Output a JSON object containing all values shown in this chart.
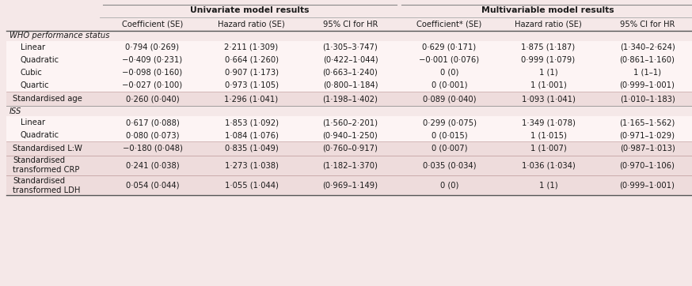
{
  "bg_color": "#f5e8e8",
  "header1": "Univariate model results",
  "header2": "Multivariable model results",
  "col_headers": [
    "Coefficient (SE)",
    "Hazard ratio (SE)",
    "95% CI for HR",
    "Coefficient* (SE)",
    "Hazard ratio (SE)",
    "95% CI for HR"
  ],
  "rows": [
    {
      "label": "WHO performance status",
      "type": "section",
      "data": [
        "",
        "",
        "",
        "",
        "",
        ""
      ]
    },
    {
      "label": "Linear",
      "type": "data",
      "indent": true,
      "data": [
        "0·794 (0·269)",
        "2·211 (1·309)",
        "(1·305–3·747)",
        "0·629 (0·171)",
        "1·875 (1·187)",
        "(1·340–2·624)"
      ]
    },
    {
      "label": "Quadratic",
      "type": "data",
      "indent": true,
      "data": [
        "−0·409 (0·231)",
        "0·664 (1·260)",
        "(0·422–1·044)",
        "−0·001 (0·076)",
        "0·999 (1·079)",
        "(0·861–1·160)"
      ]
    },
    {
      "label": "Cubic",
      "type": "data",
      "indent": true,
      "data": [
        "−0·098 (0·160)",
        "0·907 (1·173)",
        "(0·663–1·240)",
        "0 (0)",
        "1 (1)",
        "1 (1–1)"
      ]
    },
    {
      "label": "Quartic",
      "type": "data",
      "indent": true,
      "data": [
        "−0·027 (0·100)",
        "0·973 (1·105)",
        "(0·800–1·184)",
        "0 (0·001)",
        "1 (1·001)",
        "(0·999–1·001)"
      ]
    },
    {
      "label": "Standardised age",
      "type": "shaded",
      "indent": false,
      "data": [
        "0·260 (0·040)",
        "1·296 (1·041)",
        "(1·198–1·402)",
        "0·089 (0·040)",
        "1·093 (1·041)",
        "(1·010–1·183)"
      ]
    },
    {
      "label": "ISS",
      "type": "section",
      "data": [
        "",
        "",
        "",
        "",
        "",
        ""
      ]
    },
    {
      "label": "Linear",
      "type": "data",
      "indent": true,
      "data": [
        "0·617 (0·088)",
        "1·853 (1·092)",
        "(1·560–2·201)",
        "0·299 (0·075)",
        "1·349 (1·078)",
        "(1·165–1·562)"
      ]
    },
    {
      "label": "Quadratic",
      "type": "data",
      "indent": true,
      "data": [
        "0·080 (0·073)",
        "1·084 (1·076)",
        "(0·940–1·250)",
        "0 (0·015)",
        "1 (1·015)",
        "(0·971–1·029)"
      ]
    },
    {
      "label": "Standardised L:W",
      "type": "shaded",
      "indent": false,
      "data": [
        "−0·180 (0·048)",
        "0·835 (1·049)",
        "(0·760–0·917)",
        "0 (0·007)",
        "1 (1·007)",
        "(0·987–1·013)"
      ]
    },
    {
      "label": "Standardised\ntransformed CRP",
      "type": "shaded",
      "indent": false,
      "data": [
        "0·241 (0·038)",
        "1·273 (1·038)",
        "(1·182–1·370)",
        "0·035 (0·034)",
        "1·036 (1·034)",
        "(0·970–1·106)"
      ]
    },
    {
      "label": "Standardised\ntransformed LDH",
      "type": "shaded",
      "indent": false,
      "data": [
        "0·054 (0·044)",
        "1·055 (1·044)",
        "(0·969–1·149)",
        "0 (0)",
        "1 (1)",
        "(0·999–1·001)"
      ]
    }
  ],
  "shaded_color": "#eedcdc",
  "white_color": "#fdf4f4",
  "font_size": 7.2,
  "header_font_size": 7.8
}
